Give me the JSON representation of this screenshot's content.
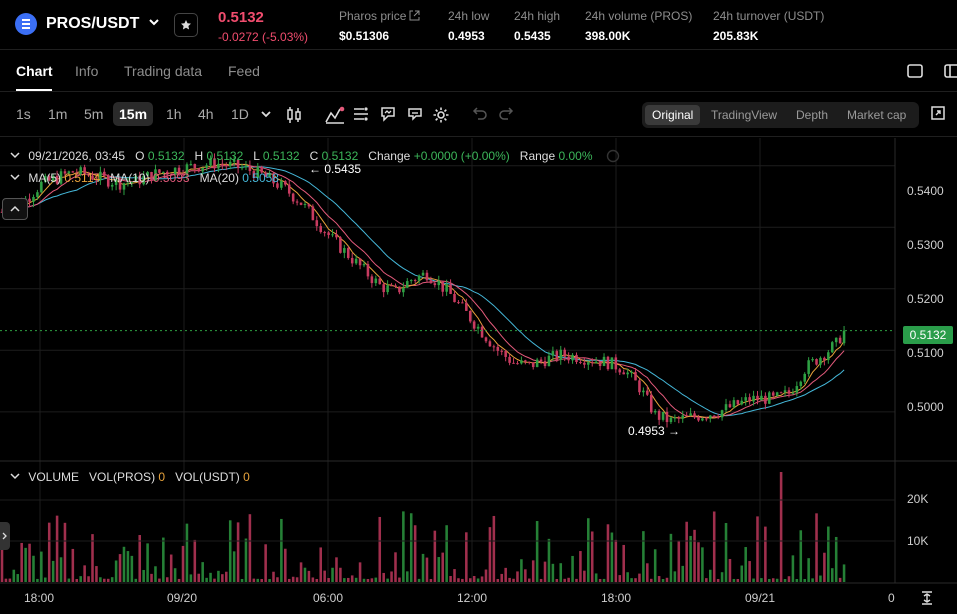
{
  "header": {
    "pair": "PROS/USDT",
    "last_price": "0.5132",
    "change": "-0.0272 (-5.03%)",
    "stats": [
      {
        "label": "Pharos price",
        "value": "$0.51306"
      },
      {
        "label": "24h low",
        "value": "0.4953"
      },
      {
        "label": "24h high",
        "value": "0.5435"
      },
      {
        "label": "24h volume (PROS)",
        "value": "398.00K"
      },
      {
        "label": "24h turnover (USDT)",
        "value": "205.83K"
      }
    ]
  },
  "tabs": [
    "Chart",
    "Info",
    "Trading data",
    "Feed"
  ],
  "toolbar": {
    "intervals": [
      "1s",
      "1m",
      "5m",
      "15m",
      "1h",
      "4h",
      "1D"
    ],
    "active_interval": "15m",
    "views": [
      "Original",
      "TradingView",
      "Depth",
      "Market cap"
    ],
    "active_view": "Original"
  },
  "legend": {
    "date": "09/21/2026, 03:45",
    "o_label": "O",
    "o": "0.5132",
    "h_label": "H",
    "h": "0.5132",
    "l_label": "L",
    "l": "0.5132",
    "c_label": "C",
    "c": "0.5132",
    "change_label": "Change",
    "change": "+0.0000 (+0.00%)",
    "range_label": "Range",
    "range": "0.00%",
    "ma5_label": "MA(5)",
    "ma5": "0.5114",
    "ma10_label": "MA(10)",
    "ma10": "0.5093",
    "ma20_label": "MA(20)",
    "ma20": "0.5058"
  },
  "volume_legend": {
    "label": "VOLUME",
    "pros_label": "VOL(PROS)",
    "pros": "0",
    "usdt_label": "VOL(USDT)",
    "usdt": "0"
  },
  "colors": {
    "up": "#2ea043",
    "down": "#c83b60",
    "ma5": "#e7a23b",
    "ma10": "#e35a7b",
    "ma20": "#45b7d8",
    "accent": "#3b6ff5"
  },
  "chart_data": {
    "type": "candlestick",
    "price_axis_ticks": [
      "0.5400",
      "0.5300",
      "0.5200",
      "0.5100",
      "0.5000"
    ],
    "volume_axis_ticks": [
      "20K",
      "10K"
    ],
    "time_axis_ticks": [
      "18:00",
      "09/20",
      "06:00",
      "12:00",
      "18:00",
      "09/21",
      "0"
    ],
    "current_price_tag": "0.5132",
    "high_annotation": "0.5435",
    "low_annotation": "0.4953",
    "ylim": [
      0.4925,
      0.5445
    ],
    "close_path": [
      [
        0,
        0.5325
      ],
      [
        6,
        0.5345
      ],
      [
        10,
        0.537
      ],
      [
        14,
        0.538
      ],
      [
        18,
        0.539
      ],
      [
        22,
        0.5385
      ],
      [
        26,
        0.5378
      ],
      [
        30,
        0.5372
      ],
      [
        34,
        0.5375
      ],
      [
        38,
        0.5385
      ],
      [
        42,
        0.5392
      ],
      [
        46,
        0.5396
      ],
      [
        50,
        0.54
      ],
      [
        54,
        0.5404
      ],
      [
        58,
        0.54
      ],
      [
        62,
        0.5395
      ],
      [
        66,
        0.5385
      ],
      [
        70,
        0.537
      ],
      [
        72,
        0.5362
      ],
      [
        76,
        0.534
      ],
      [
        80,
        0.531
      ],
      [
        84,
        0.528
      ],
      [
        88,
        0.5255
      ],
      [
        92,
        0.523
      ],
      [
        96,
        0.5205
      ],
      [
        100,
        0.5195
      ],
      [
        104,
        0.5215
      ],
      [
        108,
        0.5225
      ],
      [
        110,
        0.5215
      ],
      [
        114,
        0.519
      ],
      [
        118,
        0.516
      ],
      [
        122,
        0.513
      ],
      [
        126,
        0.51
      ],
      [
        130,
        0.508
      ],
      [
        134,
        0.5075
      ],
      [
        138,
        0.5085
      ],
      [
        142,
        0.5092
      ],
      [
        146,
        0.509
      ],
      [
        150,
        0.5085
      ],
      [
        154,
        0.508
      ],
      [
        158,
        0.507
      ],
      [
        162,
        0.504
      ],
      [
        166,
        0.4995
      ],
      [
        170,
        0.4985
      ],
      [
        174,
        0.499
      ],
      [
        178,
        0.4995
      ],
      [
        182,
        0.5
      ],
      [
        186,
        0.501
      ],
      [
        190,
        0.502
      ],
      [
        194,
        0.5022
      ],
      [
        196,
        0.502
      ],
      [
        200,
        0.503
      ],
      [
        204,
        0.507
      ],
      [
        208,
        0.509
      ],
      [
        212,
        0.511
      ],
      [
        214,
        0.5132
      ]
    ]
  }
}
